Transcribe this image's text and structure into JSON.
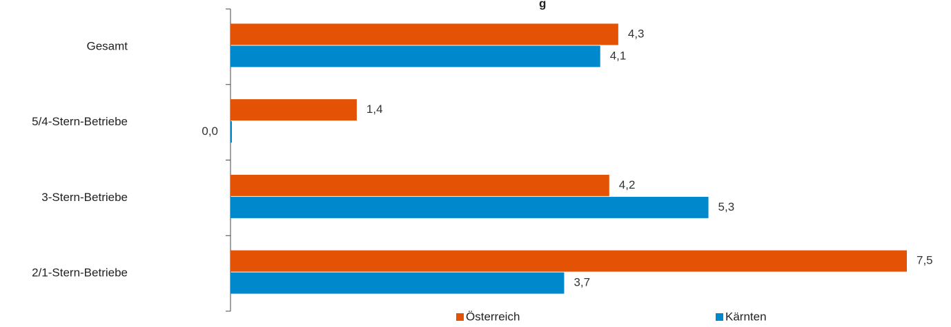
{
  "chart_data": {
    "type": "bar",
    "orientation": "horizontal",
    "title_fragment": "g",
    "categories": [
      "Gesamt",
      "5/4-Stern-Betriebe",
      "3-Stern-Betriebe",
      "2/1-Stern-Betriebe"
    ],
    "series": [
      {
        "name": "Österreich",
        "color": "#E35205",
        "values": [
          4.3,
          1.4,
          4.2,
          7.5
        ],
        "labels": [
          "4,3",
          "1,4",
          "4,2",
          "7,5"
        ]
      },
      {
        "name": "Kärnten",
        "color": "#0088CC",
        "values": [
          4.1,
          0.0,
          5.3,
          3.7
        ],
        "labels": [
          "4,1",
          "0,0",
          "5,3",
          "3,7"
        ]
      }
    ],
    "xlim": [
      0,
      7.5
    ],
    "grid": false,
    "legend_position": "bottom"
  }
}
